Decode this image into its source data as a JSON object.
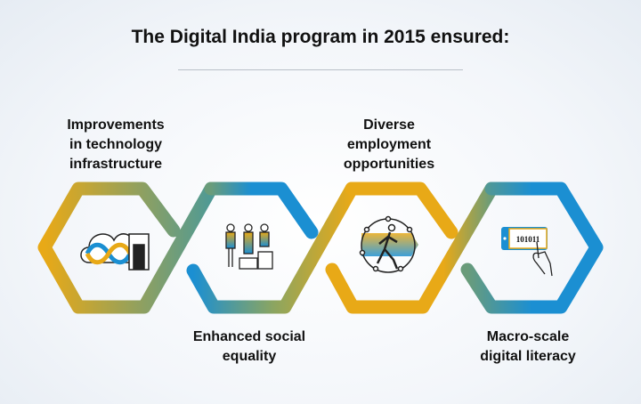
{
  "title": "The Digital India program in 2015 ensured:",
  "items": [
    {
      "label": "Improvements in technology infrastructure",
      "lines": [
        "Improvements",
        "in technology",
        "infrastructure"
      ],
      "icon": "cloud-server-icon"
    },
    {
      "label": "Enhanced social equality",
      "lines": [
        "Enhanced social",
        "equality"
      ],
      "icon": "people-podium-icon"
    },
    {
      "label": "Diverse employment opportunities",
      "lines": [
        "Diverse",
        "employment",
        "opportunities"
      ],
      "icon": "runner-network-icon"
    },
    {
      "label": "Macro-scale digital literacy",
      "lines": [
        "Macro-scale",
        "digital literacy"
      ],
      "icon": "tablet-touch-icon"
    }
  ],
  "tablet_text": "101011",
  "colors": {
    "gold": "#e8a917",
    "teal": "#5f9c86",
    "blue": "#1b8fd2"
  }
}
